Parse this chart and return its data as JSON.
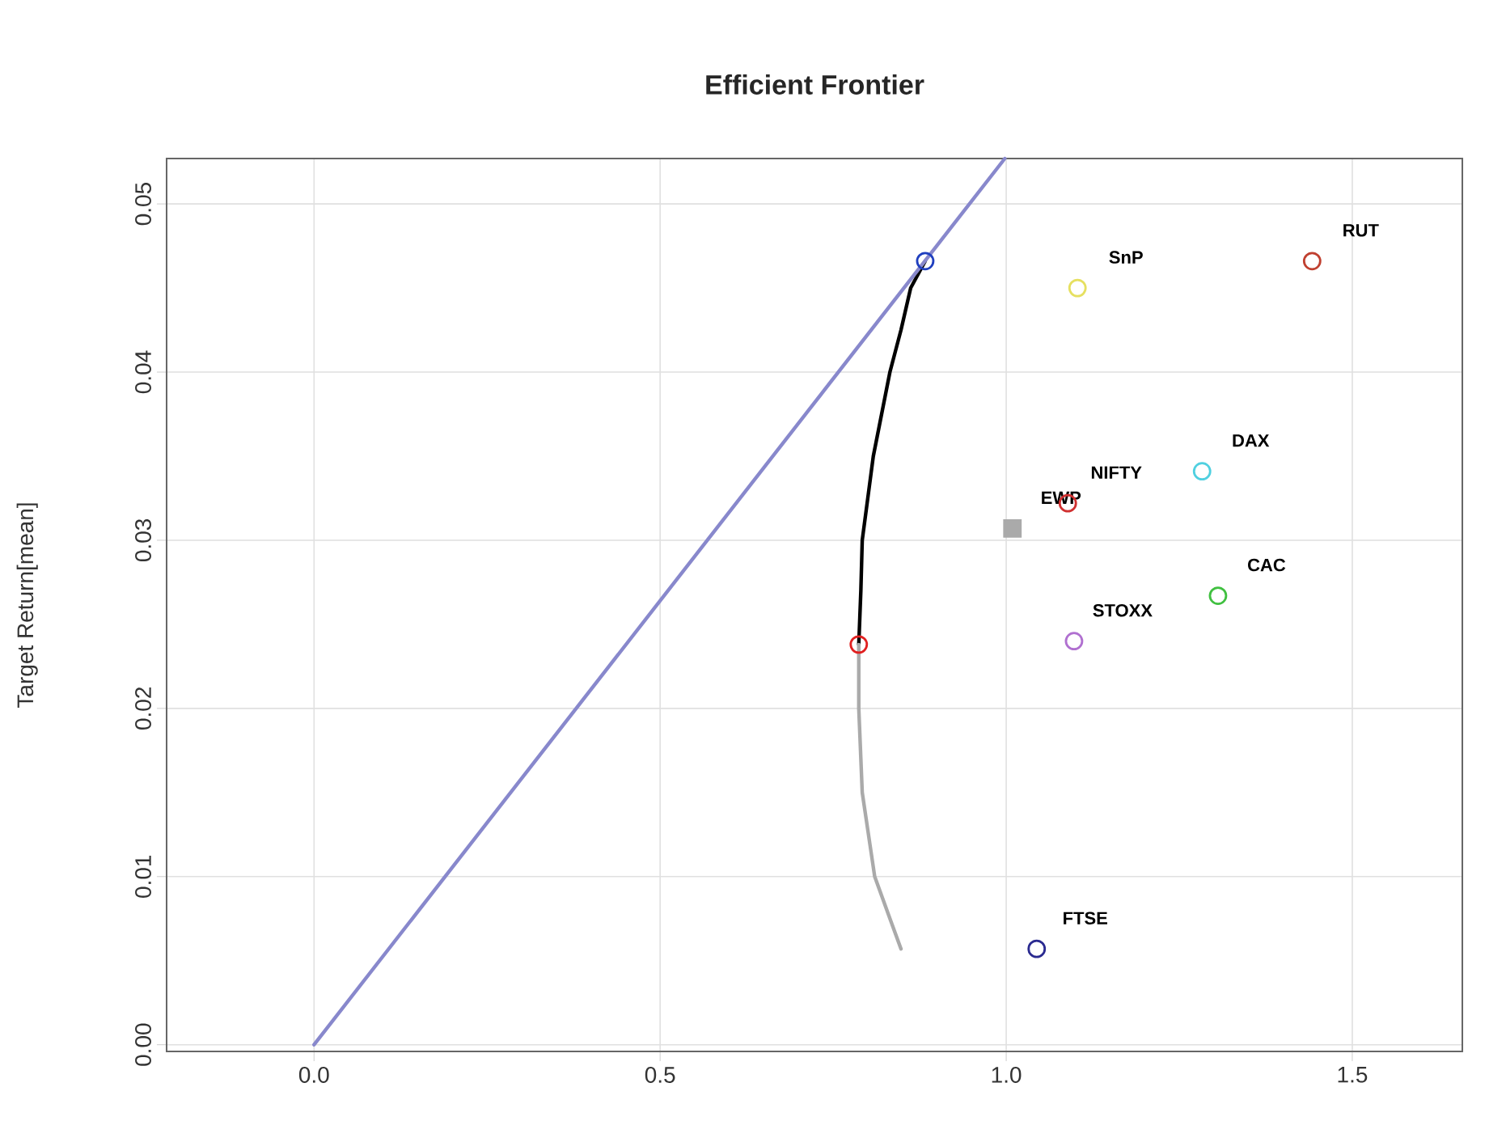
{
  "chart_data": {
    "type": "scatter",
    "title": "Efficient Frontier",
    "ylabel": "Target Return[mean]",
    "xlim": [
      -0.213,
      1.659
    ],
    "ylim": [
      -0.0004,
      0.0527
    ],
    "xticks": [
      {
        "value": 0,
        "label": "0.0"
      },
      {
        "value": 0.5,
        "label": "0.5"
      },
      {
        "value": 1,
        "label": "1.0"
      },
      {
        "value": 1.5,
        "label": "1.5"
      }
    ],
    "yticks": [
      {
        "value": 0,
        "label": "0.00"
      },
      {
        "value": 0.01,
        "label": "0.01"
      },
      {
        "value": 0.02,
        "label": "0.02"
      },
      {
        "value": 0.03,
        "label": "0.03"
      },
      {
        "value": 0.04,
        "label": "0.04"
      },
      {
        "value": 0.05,
        "label": "0.05"
      }
    ],
    "grid": true,
    "legend": false,
    "marker": "circle",
    "series": [
      {
        "type": "line",
        "marker": "none",
        "color": "#000000",
        "x": [
          0.787,
          0.79,
          0.792,
          0.8,
          0.808,
          0.82,
          0.832,
          0.848,
          0.862,
          0.883
        ],
        "values": [
          0.0238,
          0.027,
          0.03,
          0.0325,
          0.035,
          0.0375,
          0.04,
          0.0425,
          0.045,
          0.0466
        ]
      },
      {
        "type": "line",
        "marker": "none",
        "color": "#aaaaaa",
        "x": [
          0.787,
          0.787,
          0.792,
          0.81,
          0.832,
          0.848
        ],
        "values": [
          0.0238,
          0.02,
          0.015,
          0.01,
          0.0075,
          0.0057
        ]
      },
      {
        "type": "line",
        "marker": "none",
        "color": "#8888cc",
        "x": [
          0,
          0.998
        ],
        "values": [
          0,
          0.0527
        ]
      },
      {
        "color": "#e02020",
        "x": [
          0.787
        ],
        "values": [
          0.0238
        ]
      },
      {
        "color": "#1f3fbf",
        "x": [
          0.883
        ],
        "values": [
          0.0466
        ]
      },
      {
        "name": "SnP",
        "color": "#e6e060",
        "x": [
          1.103
        ],
        "values": [
          0.045
        ]
      },
      {
        "name": "RUT",
        "color": "#c04030",
        "x": [
          1.442
        ],
        "values": [
          0.0466
        ]
      },
      {
        "name": "DAX",
        "color": "#50d0e0",
        "x": [
          1.283
        ],
        "values": [
          0.0341
        ]
      },
      {
        "name": "NIFTY",
        "color": "#d03030",
        "x": [
          1.089
        ],
        "values": [
          0.0322
        ]
      },
      {
        "name": "EWP",
        "color": "#aaaaaa",
        "marker": "square",
        "x": [
          1.009
        ],
        "values": [
          0.0307
        ]
      },
      {
        "name": "CAC",
        "color": "#40c040",
        "x": [
          1.306
        ],
        "values": [
          0.0267
        ]
      },
      {
        "name": "STOXX",
        "color": "#b070d0",
        "x": [
          1.098
        ],
        "values": [
          0.024
        ]
      },
      {
        "name": "FTSE",
        "color": "#2a2a90",
        "x": [
          1.044
        ],
        "values": [
          0.0057
        ]
      }
    ]
  }
}
